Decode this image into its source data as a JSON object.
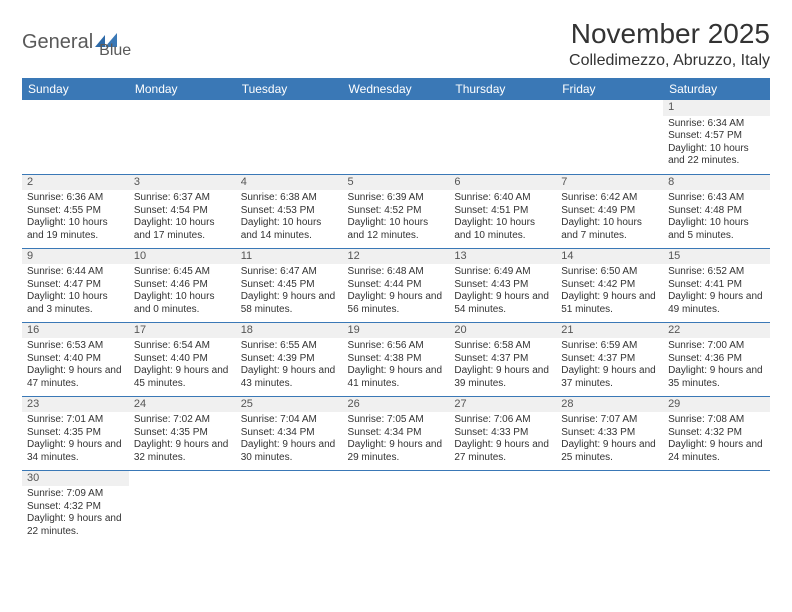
{
  "logo": {
    "general": "General",
    "blue": "Blue"
  },
  "title": "November 2025",
  "location": "Colledimezzo, Abruzzo, Italy",
  "colors": {
    "header_bg": "#3a78b6",
    "header_text": "#ffffff",
    "border": "#3a78b6",
    "text": "#333333",
    "daynum_bg": "#f0f0f0",
    "logo_gray": "#595959",
    "logo_blue": "#3a78b6"
  },
  "weekdays": [
    "Sunday",
    "Monday",
    "Tuesday",
    "Wednesday",
    "Thursday",
    "Friday",
    "Saturday"
  ],
  "weeks": [
    [
      null,
      null,
      null,
      null,
      null,
      null,
      {
        "d": "1",
        "sr": "Sunrise: 6:34 AM",
        "ss": "Sunset: 4:57 PM",
        "dl": "Daylight: 10 hours and 22 minutes."
      }
    ],
    [
      {
        "d": "2",
        "sr": "Sunrise: 6:36 AM",
        "ss": "Sunset: 4:55 PM",
        "dl": "Daylight: 10 hours and 19 minutes."
      },
      {
        "d": "3",
        "sr": "Sunrise: 6:37 AM",
        "ss": "Sunset: 4:54 PM",
        "dl": "Daylight: 10 hours and 17 minutes."
      },
      {
        "d": "4",
        "sr": "Sunrise: 6:38 AM",
        "ss": "Sunset: 4:53 PM",
        "dl": "Daylight: 10 hours and 14 minutes."
      },
      {
        "d": "5",
        "sr": "Sunrise: 6:39 AM",
        "ss": "Sunset: 4:52 PM",
        "dl": "Daylight: 10 hours and 12 minutes."
      },
      {
        "d": "6",
        "sr": "Sunrise: 6:40 AM",
        "ss": "Sunset: 4:51 PM",
        "dl": "Daylight: 10 hours and 10 minutes."
      },
      {
        "d": "7",
        "sr": "Sunrise: 6:42 AM",
        "ss": "Sunset: 4:49 PM",
        "dl": "Daylight: 10 hours and 7 minutes."
      },
      {
        "d": "8",
        "sr": "Sunrise: 6:43 AM",
        "ss": "Sunset: 4:48 PM",
        "dl": "Daylight: 10 hours and 5 minutes."
      }
    ],
    [
      {
        "d": "9",
        "sr": "Sunrise: 6:44 AM",
        "ss": "Sunset: 4:47 PM",
        "dl": "Daylight: 10 hours and 3 minutes."
      },
      {
        "d": "10",
        "sr": "Sunrise: 6:45 AM",
        "ss": "Sunset: 4:46 PM",
        "dl": "Daylight: 10 hours and 0 minutes."
      },
      {
        "d": "11",
        "sr": "Sunrise: 6:47 AM",
        "ss": "Sunset: 4:45 PM",
        "dl": "Daylight: 9 hours and 58 minutes."
      },
      {
        "d": "12",
        "sr": "Sunrise: 6:48 AM",
        "ss": "Sunset: 4:44 PM",
        "dl": "Daylight: 9 hours and 56 minutes."
      },
      {
        "d": "13",
        "sr": "Sunrise: 6:49 AM",
        "ss": "Sunset: 4:43 PM",
        "dl": "Daylight: 9 hours and 54 minutes."
      },
      {
        "d": "14",
        "sr": "Sunrise: 6:50 AM",
        "ss": "Sunset: 4:42 PM",
        "dl": "Daylight: 9 hours and 51 minutes."
      },
      {
        "d": "15",
        "sr": "Sunrise: 6:52 AM",
        "ss": "Sunset: 4:41 PM",
        "dl": "Daylight: 9 hours and 49 minutes."
      }
    ],
    [
      {
        "d": "16",
        "sr": "Sunrise: 6:53 AM",
        "ss": "Sunset: 4:40 PM",
        "dl": "Daylight: 9 hours and 47 minutes."
      },
      {
        "d": "17",
        "sr": "Sunrise: 6:54 AM",
        "ss": "Sunset: 4:40 PM",
        "dl": "Daylight: 9 hours and 45 minutes."
      },
      {
        "d": "18",
        "sr": "Sunrise: 6:55 AM",
        "ss": "Sunset: 4:39 PM",
        "dl": "Daylight: 9 hours and 43 minutes."
      },
      {
        "d": "19",
        "sr": "Sunrise: 6:56 AM",
        "ss": "Sunset: 4:38 PM",
        "dl": "Daylight: 9 hours and 41 minutes."
      },
      {
        "d": "20",
        "sr": "Sunrise: 6:58 AM",
        "ss": "Sunset: 4:37 PM",
        "dl": "Daylight: 9 hours and 39 minutes."
      },
      {
        "d": "21",
        "sr": "Sunrise: 6:59 AM",
        "ss": "Sunset: 4:37 PM",
        "dl": "Daylight: 9 hours and 37 minutes."
      },
      {
        "d": "22",
        "sr": "Sunrise: 7:00 AM",
        "ss": "Sunset: 4:36 PM",
        "dl": "Daylight: 9 hours and 35 minutes."
      }
    ],
    [
      {
        "d": "23",
        "sr": "Sunrise: 7:01 AM",
        "ss": "Sunset: 4:35 PM",
        "dl": "Daylight: 9 hours and 34 minutes."
      },
      {
        "d": "24",
        "sr": "Sunrise: 7:02 AM",
        "ss": "Sunset: 4:35 PM",
        "dl": "Daylight: 9 hours and 32 minutes."
      },
      {
        "d": "25",
        "sr": "Sunrise: 7:04 AM",
        "ss": "Sunset: 4:34 PM",
        "dl": "Daylight: 9 hours and 30 minutes."
      },
      {
        "d": "26",
        "sr": "Sunrise: 7:05 AM",
        "ss": "Sunset: 4:34 PM",
        "dl": "Daylight: 9 hours and 29 minutes."
      },
      {
        "d": "27",
        "sr": "Sunrise: 7:06 AM",
        "ss": "Sunset: 4:33 PM",
        "dl": "Daylight: 9 hours and 27 minutes."
      },
      {
        "d": "28",
        "sr": "Sunrise: 7:07 AM",
        "ss": "Sunset: 4:33 PM",
        "dl": "Daylight: 9 hours and 25 minutes."
      },
      {
        "d": "29",
        "sr": "Sunrise: 7:08 AM",
        "ss": "Sunset: 4:32 PM",
        "dl": "Daylight: 9 hours and 24 minutes."
      }
    ],
    [
      {
        "d": "30",
        "sr": "Sunrise: 7:09 AM",
        "ss": "Sunset: 4:32 PM",
        "dl": "Daylight: 9 hours and 22 minutes."
      },
      null,
      null,
      null,
      null,
      null,
      null
    ]
  ]
}
